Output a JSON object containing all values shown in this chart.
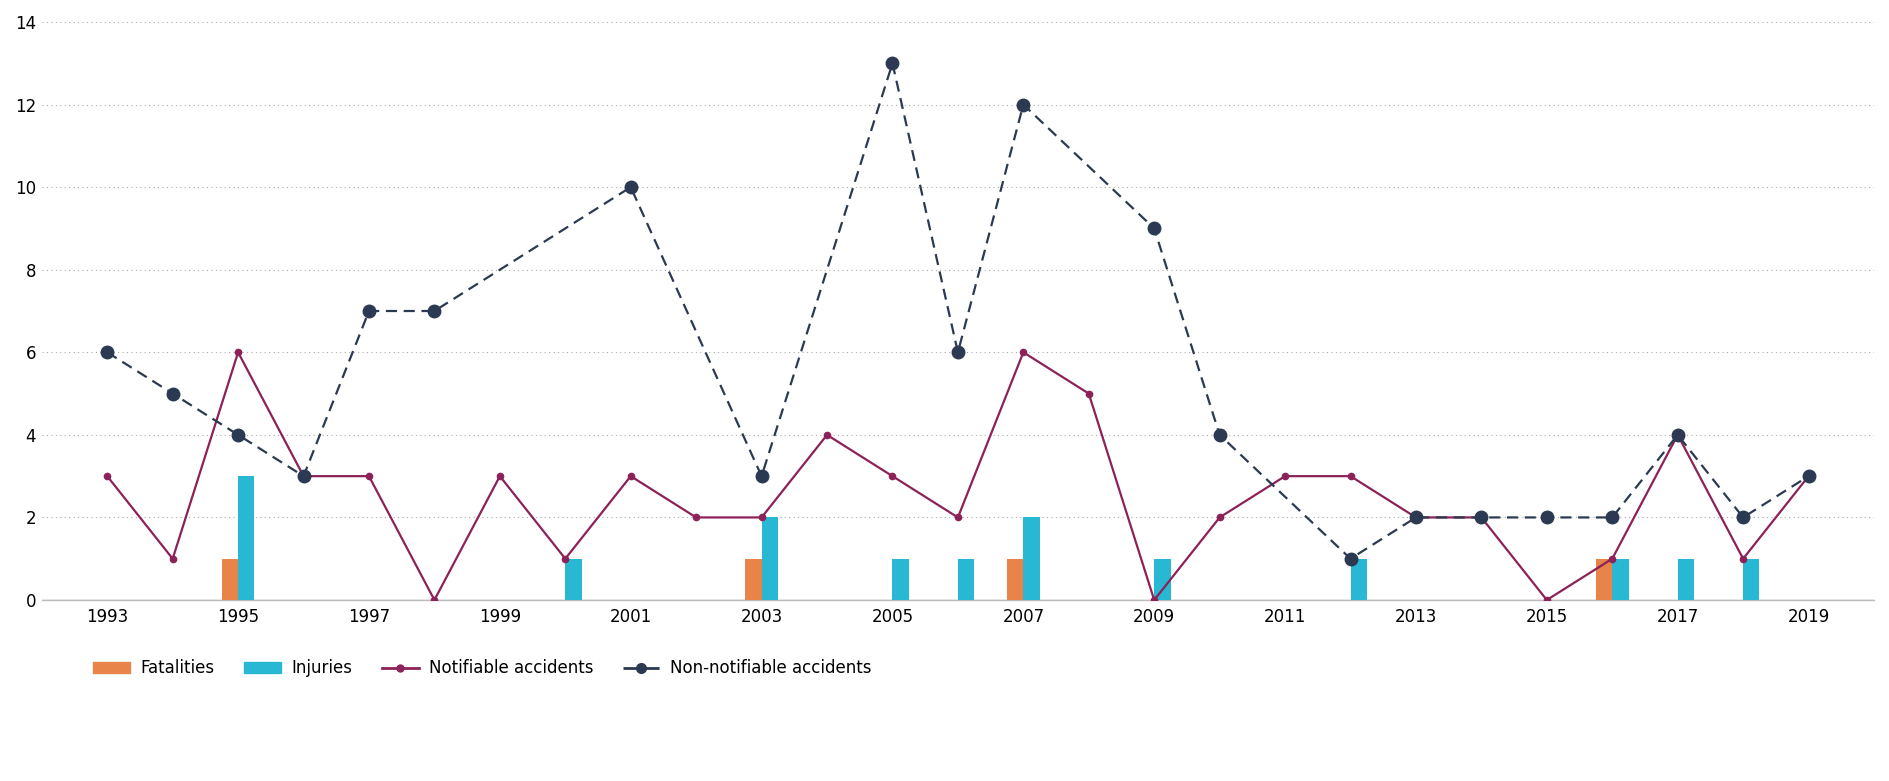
{
  "years": [
    1993,
    1994,
    1995,
    1996,
    1997,
    1998,
    1999,
    2000,
    2001,
    2002,
    2003,
    2004,
    2005,
    2006,
    2007,
    2008,
    2009,
    2010,
    2011,
    2012,
    2013,
    2014,
    2015,
    2016,
    2017,
    2018,
    2019
  ],
  "fatalities": [
    0,
    0,
    1,
    0,
    0,
    0,
    0,
    0,
    0,
    0,
    1,
    0,
    0,
    0,
    1,
    0,
    0,
    0,
    0,
    0,
    0,
    0,
    0,
    1,
    0,
    0,
    0
  ],
  "injuries": [
    0,
    0,
    3,
    0,
    0,
    0,
    0,
    1,
    0,
    0,
    2,
    0,
    1,
    1,
    2,
    0,
    1,
    0,
    0,
    1,
    0,
    0,
    0,
    1,
    1,
    1,
    0
  ],
  "notifiable": [
    3,
    1,
    6,
    3,
    3,
    0,
    3,
    1,
    3,
    2,
    2,
    4,
    3,
    2,
    6,
    5,
    0,
    2,
    3,
    3,
    2,
    2,
    0,
    1,
    4,
    1,
    3
  ],
  "non_notifiable": [
    6,
    5,
    4,
    3,
    7,
    7,
    null,
    null,
    10,
    null,
    3,
    null,
    13,
    6,
    12,
    null,
    9,
    4,
    null,
    1,
    2,
    2,
    2,
    2,
    4,
    2,
    3
  ],
  "fatalities_color": "#E8834A",
  "injuries_color": "#29B8D4",
  "notifiable_color": "#8C2257",
  "non_notifiable_color": "#2B3A52",
  "background_color": "#ffffff",
  "ylim": [
    0,
    14
  ],
  "yticks": [
    0,
    2,
    4,
    6,
    8,
    10,
    12,
    14
  ],
  "xtick_labels": [
    "1993",
    "1995",
    "1997",
    "1999",
    "2001",
    "2003",
    "2005",
    "2007",
    "2009",
    "2011",
    "2013",
    "2015",
    "2017",
    "2019"
  ],
  "xtick_positions": [
    1993,
    1995,
    1997,
    1999,
    2001,
    2003,
    2005,
    2007,
    2009,
    2011,
    2013,
    2015,
    2017,
    2019
  ],
  "legend_labels": [
    "Fatalities",
    "Injuries",
    "Notifiable accidents",
    "Non-notifiable accidents"
  ],
  "bar_width": 0.25
}
